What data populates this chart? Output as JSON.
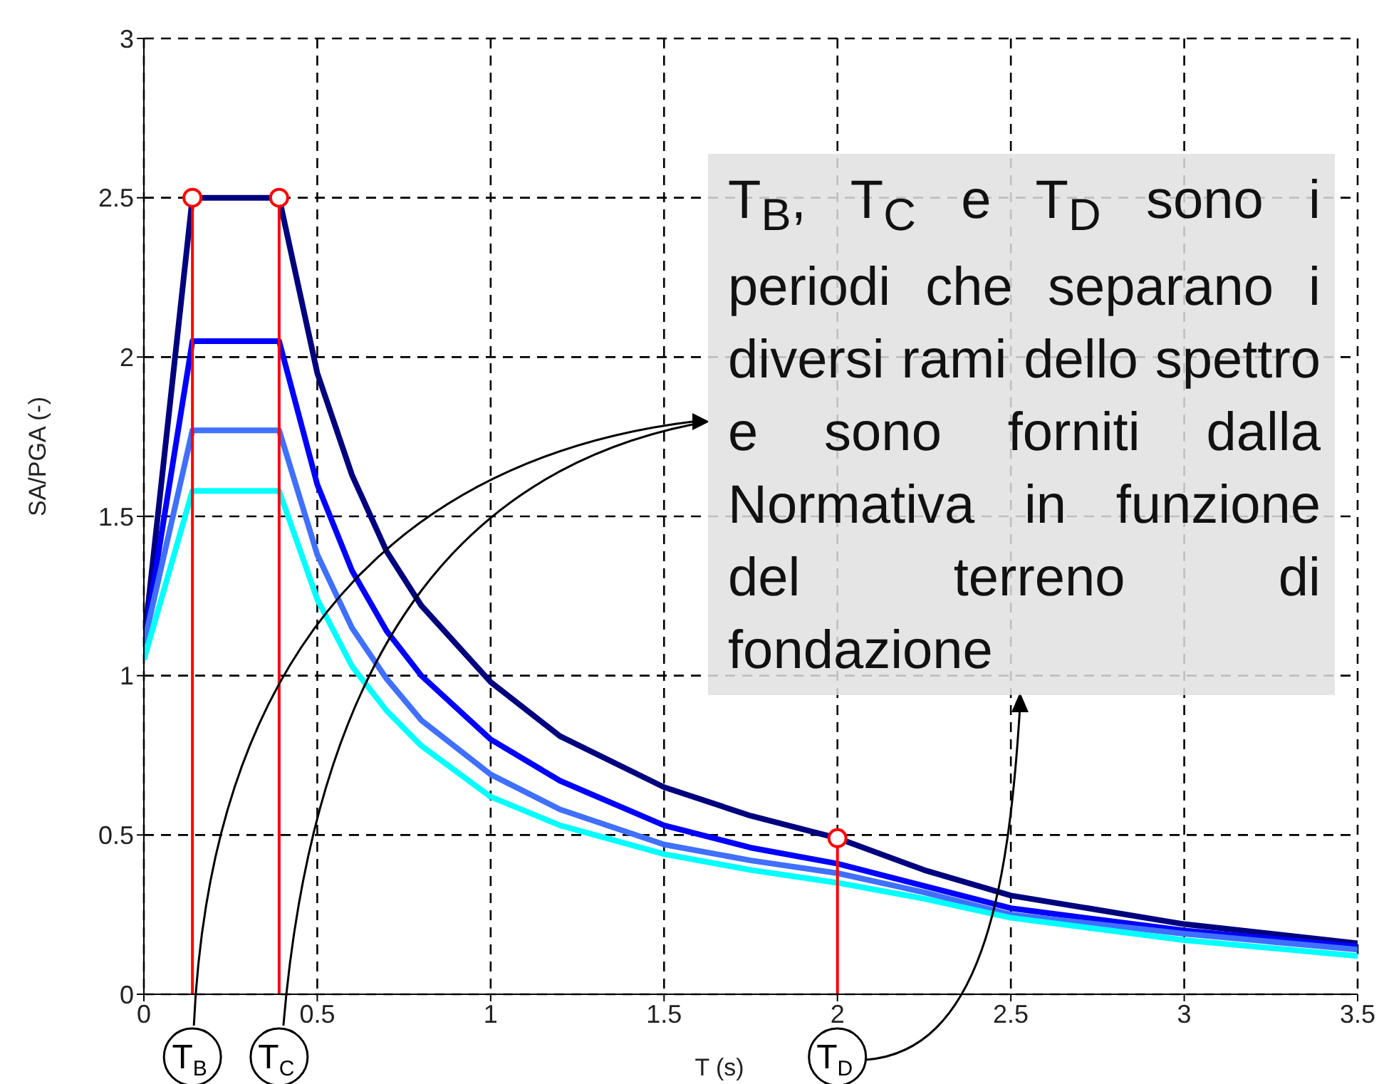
{
  "chart_data": {
    "type": "line",
    "xlabel": "T (s)",
    "ylabel": "SA/PGA (-)",
    "x": [
      0,
      0.14,
      0.39,
      0.5,
      0.6,
      0.7,
      0.8,
      1.0,
      1.2,
      1.5,
      1.75,
      2.0,
      2.25,
      2.5,
      3.0,
      3.5
    ],
    "series": [
      {
        "color": "#00007f",
        "values": [
          1.1,
          2.5,
          2.5,
          1.95,
          1.63,
          1.39,
          1.22,
          0.98,
          0.81,
          0.65,
          0.56,
          0.49,
          0.39,
          0.31,
          0.22,
          0.16
        ]
      },
      {
        "color": "#0000ff",
        "values": [
          1.1,
          2.05,
          2.05,
          1.6,
          1.33,
          1.14,
          1.0,
          0.8,
          0.67,
          0.53,
          0.46,
          0.41,
          0.34,
          0.27,
          0.2,
          0.15
        ]
      },
      {
        "color": "#4070ff",
        "values": [
          1.1,
          1.77,
          1.77,
          1.38,
          1.15,
          0.99,
          0.86,
          0.69,
          0.58,
          0.47,
          0.42,
          0.38,
          0.32,
          0.25,
          0.19,
          0.14
        ]
      },
      {
        "color": "#00ffff",
        "values": [
          1.05,
          1.58,
          1.58,
          1.24,
          1.03,
          0.89,
          0.78,
          0.62,
          0.53,
          0.44,
          0.39,
          0.35,
          0.3,
          0.24,
          0.17,
          0.12
        ]
      },
      {
        "type": "scatter",
        "marker": "circle",
        "color": "#ff0000",
        "x": [
          0.14,
          0.39,
          2.0
        ],
        "values": [
          2.5,
          2.5,
          0.49
        ]
      }
    ],
    "ref_lines": [
      {
        "axis": "x",
        "value": 0.14,
        "color": "#ff0000"
      },
      {
        "axis": "x",
        "value": 0.39,
        "color": "#ff0000"
      },
      {
        "axis": "x",
        "value": 2.0,
        "color": "#ff0000"
      }
    ],
    "annotations": [
      "T$_{B}$, T$_{C}$ e T$_{D}$ sono i periodi che separano i diversi rami dello spettro e sono forniti dalla Normativa in funzione del terreno di fondazione",
      {
        "text": "T$_{B}$",
        "x": 0.14,
        "y": 0
      },
      {
        "text": "T$_{C}$",
        "x": 0.39,
        "y": 0
      },
      {
        "text": "T$_{D}$",
        "x": 2.0,
        "y": 0
      }
    ],
    "xlim": [
      0,
      3.5
    ],
    "xticks": [
      0,
      0.5,
      1,
      1.5,
      2,
      2.5,
      3,
      3.5
    ],
    "ylim": [
      0,
      3
    ],
    "yticks": [
      0,
      0.5,
      1,
      1.5,
      2,
      2.5,
      3
    ],
    "grid": true,
    "line_style": "solid"
  }
}
